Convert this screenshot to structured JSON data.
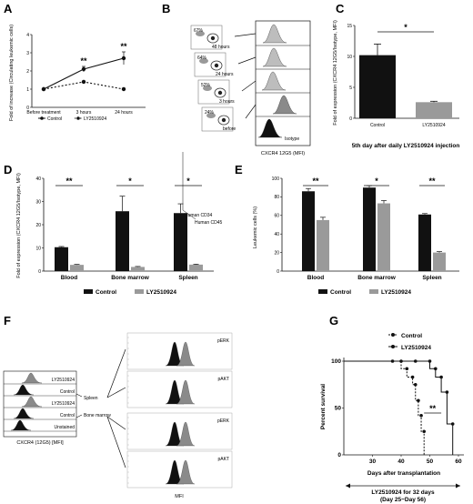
{
  "panels": {
    "A": {
      "letter": "A"
    },
    "B": {
      "letter": "B"
    },
    "C": {
      "letter": "C"
    },
    "D": {
      "letter": "D"
    },
    "E": {
      "letter": "E"
    },
    "F": {
      "letter": "F"
    },
    "G": {
      "letter": "G"
    }
  },
  "colors": {
    "control": "#111111",
    "ly": "#9a9a9a",
    "light": "#c8c8c8"
  },
  "chart_data": [
    {
      "id": "A",
      "type": "line",
      "categories": [
        "Before treatment",
        "3 hours",
        "24 hours"
      ],
      "ylabel": "Fold of increase (Circulating leukemic cells)",
      "ylim": [
        0,
        4
      ],
      "yticks": [
        "0",
        "1",
        "2",
        "3",
        "4"
      ],
      "series": [
        {
          "name": "Control",
          "values": [
            1.0,
            2.1,
            2.7
          ],
          "err": [
            0,
            0.15,
            0.35
          ]
        },
        {
          "name": "LY2510924",
          "values": [
            1.0,
            1.4,
            1.0
          ],
          "err": [
            0,
            0.05,
            0.05
          ]
        }
      ],
      "annotations": [
        "**",
        "**"
      ]
    },
    {
      "id": "B",
      "type": "histogram-overlay",
      "rows": [
        "48 hours",
        "24 hours",
        "3 hours",
        "before",
        "Isotype"
      ],
      "row_pcts": [
        "67%",
        "64%",
        "52%",
        "24%",
        ""
      ],
      "y_axis_label": "Human CD34",
      "x_axis_label": "Human CD45",
      "hist_xlabel": "CXCR4 12G5 (MFI)",
      "isotype_label": "Isotype"
    },
    {
      "id": "C",
      "type": "bar",
      "categories": [
        "Control",
        "LY2510924"
      ],
      "values": [
        10.2,
        2.6
      ],
      "err": [
        1.8,
        0.15
      ],
      "ylabel": "Fold of expression (CXCR4 12G5/Isotype, MFI)",
      "ylim": [
        0,
        15
      ],
      "yticks": [
        "0",
        "5",
        "10",
        "15"
      ],
      "xlabel": "5th day after daily LY2510924 injection",
      "annotations": [
        "*"
      ]
    },
    {
      "id": "D",
      "type": "bar",
      "categories": [
        "Blood",
        "Bone marrow",
        "Spleen"
      ],
      "ylabel": "Fold of expression (CXCR4 12G5/Isotype, MFI)",
      "ylim": [
        0,
        40
      ],
      "yticks": [
        "0",
        "10",
        "20",
        "30",
        "40"
      ],
      "series": [
        {
          "name": "Control",
          "values": [
            10.3,
            25.8,
            25.0
          ],
          "err": [
            0.3,
            6.5,
            4.0
          ]
        },
        {
          "name": "LY2510924",
          "values": [
            2.7,
            1.8,
            2.8
          ],
          "err": [
            0.2,
            0.2,
            0.2
          ]
        }
      ],
      "annotations": [
        "**",
        "*",
        "*"
      ]
    },
    {
      "id": "E",
      "type": "bar",
      "categories": [
        "Blood",
        "Bone marrow",
        "Spleen"
      ],
      "ylabel": "Leukemic cells (%)",
      "ylim": [
        0,
        100
      ],
      "yticks": [
        "0",
        "20",
        "40",
        "60",
        "80",
        "100"
      ],
      "series": [
        {
          "name": "Control",
          "values": [
            86,
            90,
            61
          ],
          "err": [
            3,
            2,
            1
          ]
        },
        {
          "name": "LY2510924",
          "values": [
            55,
            73,
            20
          ],
          "err": [
            3,
            3,
            1
          ]
        }
      ],
      "annotations": [
        "**",
        "*",
        "**"
      ]
    },
    {
      "id": "F",
      "type": "histogram-overlay",
      "left_rows": [
        "LY2510924",
        "Control",
        "LY2510924",
        "Control",
        "Unstained"
      ],
      "group_labels": [
        "Spleen",
        "Bone marrow"
      ],
      "left_xlabel": "CXCR4 (12G5) [MFI]",
      "right_rows": [
        "pERK",
        "pAKT",
        "pERK",
        "pAKT"
      ],
      "right_xlabel": "MFI"
    },
    {
      "id": "G",
      "type": "line",
      "xlabel": "Days after transplantation",
      "ylabel": "Percent survival",
      "xlim": [
        20,
        60
      ],
      "ylim": [
        0,
        100
      ],
      "xticks": [
        "30",
        "40",
        "50",
        "60"
      ],
      "yticks": [
        "0",
        "50",
        "100"
      ],
      "series": [
        {
          "name": "Control",
          "x": [
            20,
            37,
            40,
            42,
            44,
            45,
            46,
            47,
            48
          ],
          "y": [
            100,
            100,
            92,
            83,
            75,
            58,
            42,
            25,
            0
          ]
        },
        {
          "name": "LY2510924",
          "x": [
            20,
            45,
            50,
            52,
            54,
            56,
            58
          ],
          "y": [
            100,
            100,
            92,
            83,
            67,
            33,
            0
          ]
        }
      ],
      "annotations": [
        "**"
      ],
      "footnote_line1": "LY2510924 for 32 days",
      "footnote_line2": "(Day 25~Day 56)"
    }
  ]
}
